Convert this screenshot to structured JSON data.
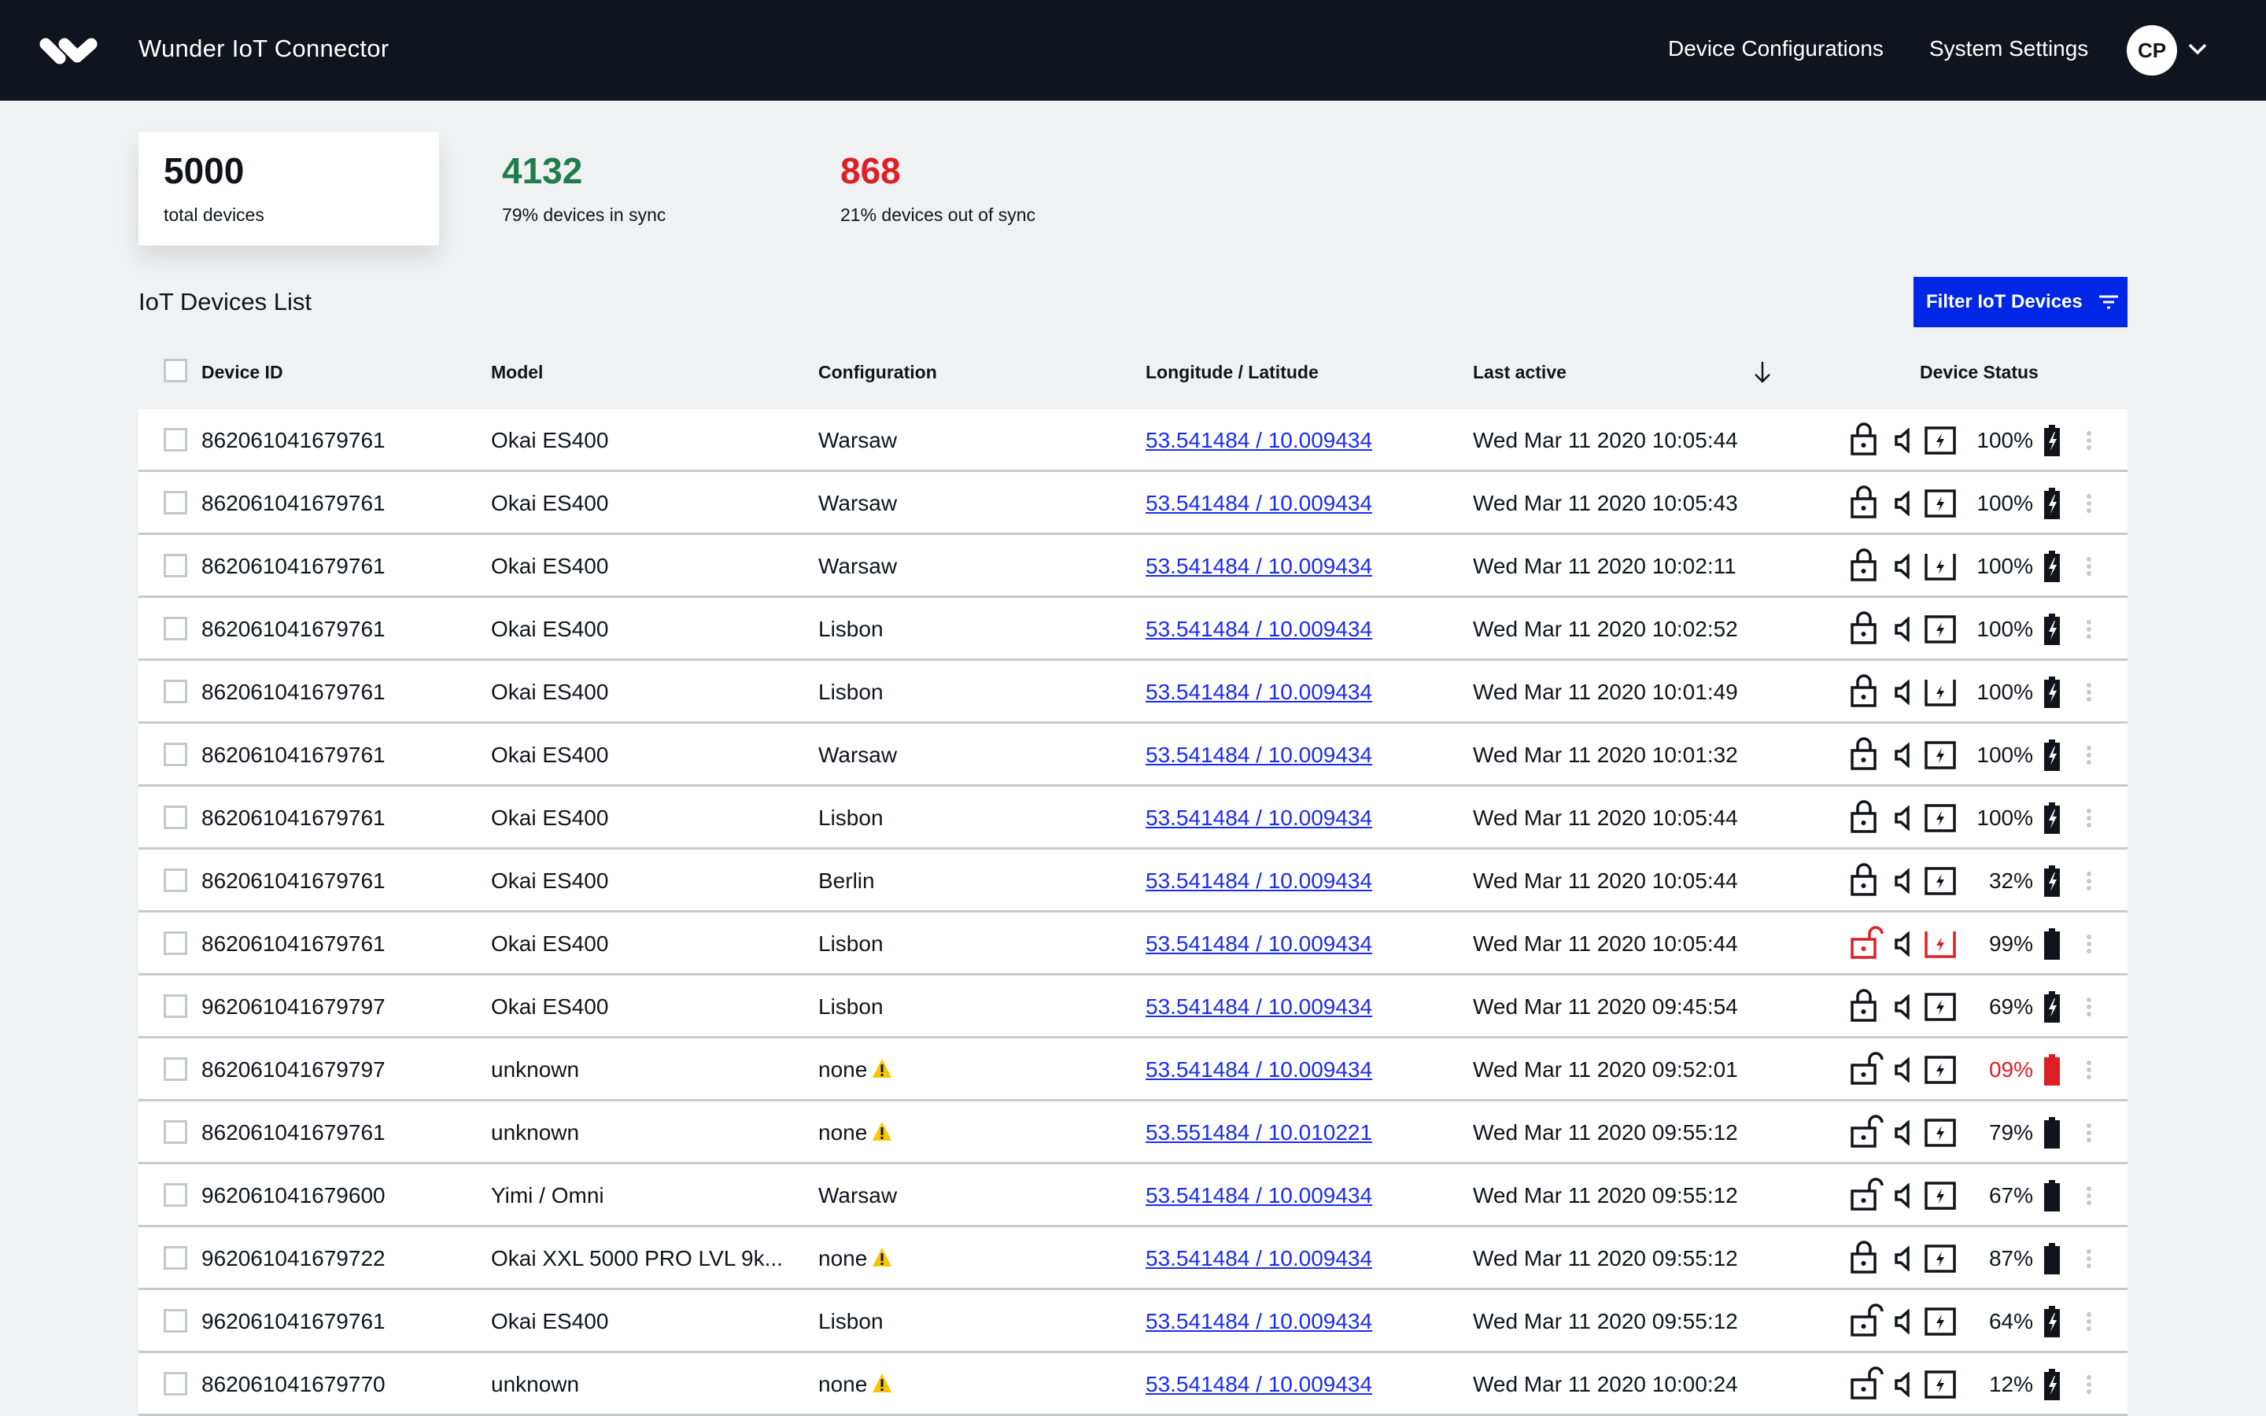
{
  "header": {
    "app_title": "Wunder IoT Connector",
    "nav": [
      "Device Configurations",
      "System Settings"
    ],
    "user_initials": "CP"
  },
  "stats": {
    "total": {
      "value": "5000",
      "label": "total devices"
    },
    "in_sync": {
      "value": "4132",
      "label": "79% devices in sync",
      "color": "#1e7e4a"
    },
    "out_of_sync": {
      "value": "868",
      "label": "21% devices out of sync",
      "color": "#dd1f26"
    }
  },
  "list": {
    "title": "IoT Devices List",
    "filter_label": "Filter IoT Devices",
    "columns": [
      "Device ID",
      "Model",
      "Configuration",
      "Longitude / Latitude",
      "Last active",
      "Device Status"
    ]
  },
  "colors": {
    "accent": "#0026e6",
    "alert": "#dd1f26",
    "warning": "#f7c600",
    "link": "#1b2cf0"
  },
  "rows": [
    {
      "id": "862061041679761",
      "model": "Okai ES400",
      "config": "Warsaw",
      "warn": false,
      "coords": "53.541484 / 10.009434",
      "last_active": "Wed Mar 11 2020 10:05:44",
      "lock": "closed",
      "charger": "closed",
      "alert": false,
      "battery": "100%",
      "charging": true,
      "battery_low": false
    },
    {
      "id": "862061041679761",
      "model": "Okai ES400",
      "config": "Warsaw",
      "warn": false,
      "coords": "53.541484 / 10.009434",
      "last_active": "Wed Mar 11 2020 10:05:43",
      "lock": "closed",
      "charger": "closed",
      "alert": false,
      "battery": "100%",
      "charging": true,
      "battery_low": false
    },
    {
      "id": "862061041679761",
      "model": "Okai ES400",
      "config": "Warsaw",
      "warn": false,
      "coords": "53.541484 / 10.009434",
      "last_active": "Wed Mar 11 2020 10:02:11",
      "lock": "closed",
      "charger": "open",
      "alert": false,
      "battery": "100%",
      "charging": true,
      "battery_low": false
    },
    {
      "id": "862061041679761",
      "model": "Okai ES400",
      "config": "Lisbon",
      "warn": false,
      "coords": "53.541484 / 10.009434",
      "last_active": "Wed Mar 11 2020 10:02:52",
      "lock": "closed",
      "charger": "closed",
      "alert": false,
      "battery": "100%",
      "charging": true,
      "battery_low": false
    },
    {
      "id": "862061041679761",
      "model": "Okai ES400",
      "config": "Lisbon",
      "warn": false,
      "coords": "53.541484 / 10.009434",
      "last_active": "Wed Mar 11 2020 10:01:49",
      "lock": "closed",
      "charger": "open",
      "alert": false,
      "battery": "100%",
      "charging": true,
      "battery_low": false
    },
    {
      "id": "862061041679761",
      "model": "Okai ES400",
      "config": "Warsaw",
      "warn": false,
      "coords": "53.541484 / 10.009434",
      "last_active": "Wed Mar 11 2020 10:01:32",
      "lock": "closed",
      "charger": "closed",
      "alert": false,
      "battery": "100%",
      "charging": true,
      "battery_low": false
    },
    {
      "id": "862061041679761",
      "model": "Okai ES400",
      "config": "Lisbon",
      "warn": false,
      "coords": "53.541484 / 10.009434",
      "last_active": "Wed Mar 11 2020 10:05:44",
      "lock": "closed",
      "charger": "closed",
      "alert": false,
      "battery": "100%",
      "charging": true,
      "battery_low": false
    },
    {
      "id": "862061041679761",
      "model": "Okai ES400",
      "config": "Berlin",
      "warn": false,
      "coords": "53.541484 / 10.009434",
      "last_active": "Wed Mar 11 2020 10:05:44",
      "lock": "closed",
      "charger": "closed",
      "alert": false,
      "battery": "32%",
      "charging": true,
      "battery_low": false
    },
    {
      "id": "862061041679761",
      "model": "Okai ES400",
      "config": "Lisbon",
      "warn": false,
      "coords": "53.541484 / 10.009434",
      "last_active": "Wed Mar 11 2020 10:05:44",
      "lock": "open",
      "charger": "open",
      "alert": true,
      "battery": "99%",
      "charging": false,
      "battery_low": false
    },
    {
      "id": "962061041679797",
      "model": "Okai ES400",
      "config": "Lisbon",
      "warn": false,
      "coords": "53.541484 / 10.009434",
      "last_active": "Wed Mar 11 2020 09:45:54",
      "lock": "closed",
      "charger": "closed",
      "alert": false,
      "battery": "69%",
      "charging": true,
      "battery_low": false
    },
    {
      "id": "862061041679797",
      "model": "unknown",
      "config": "none",
      "warn": true,
      "coords": "53.541484 / 10.009434",
      "last_active": "Wed Mar 11 2020 09:52:01",
      "lock": "open",
      "charger": "closed",
      "alert": false,
      "battery": "09%",
      "charging": false,
      "battery_low": true
    },
    {
      "id": "862061041679761",
      "model": "unknown",
      "config": "none",
      "warn": true,
      "coords": "53.551484 / 10.010221",
      "last_active": "Wed Mar 11 2020 09:55:12",
      "lock": "open",
      "charger": "closed",
      "alert": false,
      "battery": "79%",
      "charging": false,
      "battery_low": false
    },
    {
      "id": "962061041679600",
      "model": "Yimi / Omni",
      "config": "Warsaw",
      "warn": false,
      "coords": "53.541484 / 10.009434",
      "last_active": "Wed Mar 11 2020 09:55:12",
      "lock": "open",
      "charger": "closed",
      "alert": false,
      "battery": "67%",
      "charging": false,
      "battery_low": false
    },
    {
      "id": "962061041679722",
      "model": "Okai XXL 5000 PRO LVL 9k...",
      "config": "none",
      "warn": true,
      "coords": "53.541484 / 10.009434",
      "last_active": "Wed Mar 11 2020 09:55:12",
      "lock": "closed",
      "charger": "closed",
      "alert": false,
      "battery": "87%",
      "charging": false,
      "battery_low": false
    },
    {
      "id": "962061041679761",
      "model": "Okai ES400",
      "config": "Lisbon",
      "warn": false,
      "coords": "53.541484 / 10.009434",
      "last_active": "Wed Mar 11 2020 09:55:12",
      "lock": "open",
      "charger": "closed",
      "alert": false,
      "battery": "64%",
      "charging": true,
      "battery_low": false
    },
    {
      "id": "862061041679770",
      "model": "unknown",
      "config": "none",
      "warn": true,
      "coords": "53.541484 / 10.009434",
      "last_active": "Wed Mar 11 2020 10:00:24",
      "lock": "open",
      "charger": "closed",
      "alert": false,
      "battery": "12%",
      "charging": true,
      "battery_low": false
    }
  ]
}
